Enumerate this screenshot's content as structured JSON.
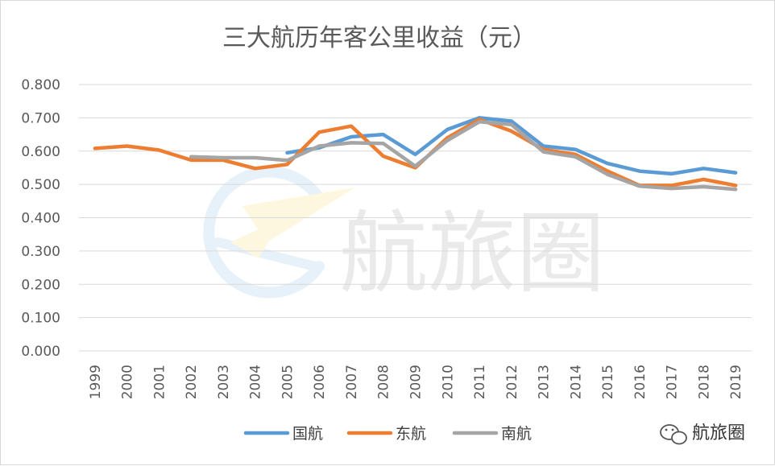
{
  "chart_data": {
    "type": "line",
    "title": "三大航历年客公里收益（元）",
    "xlabel": "",
    "ylabel": "",
    "ylim": [
      0,
      0.8
    ],
    "yticks": [
      "0.000",
      "0.100",
      "0.200",
      "0.300",
      "0.400",
      "0.500",
      "0.600",
      "0.700",
      "0.800"
    ],
    "categories": [
      "1999",
      "2000",
      "2001",
      "2002",
      "2003",
      "2004",
      "2005",
      "2006",
      "2007",
      "2008",
      "2009",
      "2010",
      "2011",
      "2012",
      "2013",
      "2014",
      "2015",
      "2016",
      "2017",
      "2018",
      "2019"
    ],
    "grid": true,
    "legend_position": "bottom",
    "series": [
      {
        "name": "国航",
        "color": "#5B9BD5",
        "values": [
          null,
          null,
          null,
          null,
          null,
          null,
          0.595,
          0.61,
          0.643,
          0.65,
          0.59,
          0.665,
          0.7,
          0.69,
          0.615,
          0.605,
          0.563,
          0.54,
          0.532,
          0.548,
          0.535
        ]
      },
      {
        "name": "东航",
        "color": "#ED7D31",
        "values": [
          0.608,
          0.615,
          0.603,
          0.573,
          0.573,
          0.548,
          0.56,
          0.657,
          0.675,
          0.585,
          0.55,
          0.64,
          0.695,
          0.66,
          0.605,
          0.59,
          0.54,
          0.497,
          0.497,
          0.515,
          0.497
        ]
      },
      {
        "name": "南航",
        "color": "#A5A5A5",
        "values": [
          null,
          null,
          null,
          0.583,
          0.58,
          0.58,
          0.572,
          0.615,
          0.625,
          0.623,
          0.555,
          0.632,
          0.688,
          0.68,
          0.598,
          0.583,
          0.53,
          0.495,
          0.488,
          0.493,
          0.485
        ]
      }
    ]
  },
  "watermark": {
    "text": "航旅圈"
  },
  "footer": {
    "icon": "wechat-icon",
    "text": "航旅圈"
  }
}
